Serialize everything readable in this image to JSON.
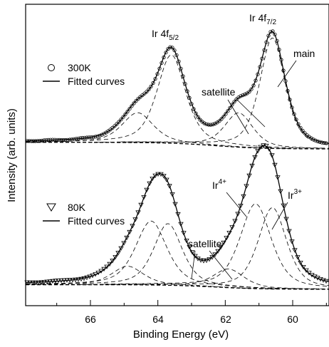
{
  "chart_data": {
    "type": "scatter",
    "xlabel": "Binding Energy (eV)",
    "ylabel": "Intensity (arb. units)",
    "xlim": [
      68,
      59
    ],
    "x_reversed": true,
    "x_ticks": [
      66,
      64,
      62,
      60
    ],
    "y_ticks_shown": false,
    "grid": false,
    "panels": [
      {
        "panel": "top",
        "legend": {
          "position": "upper-left",
          "markers": [
            "300K",
            "Fitted curves"
          ]
        },
        "peak_labels": [
          "Ir 4f5/2",
          "Ir 4f7/2"
        ],
        "annotations": [
          "main",
          "satellite"
        ],
        "peaks": [
          {
            "label": "Ir 4f5/2 main",
            "center": 63.6,
            "height": 0.8,
            "width": 0.5
          },
          {
            "label": "Ir 4f5/2 satellite",
            "center": 64.6,
            "height": 0.27,
            "width": 0.55
          },
          {
            "label": "Ir 4f7/2 main",
            "center": 60.6,
            "height": 1.0,
            "width": 0.45
          },
          {
            "label": "Ir 4f7/2 satellite",
            "center": 61.6,
            "height": 0.31,
            "width": 0.5
          }
        ]
      },
      {
        "panel": "bottom",
        "legend": {
          "position": "upper-left",
          "markers": [
            "80K",
            "Fitted curves"
          ]
        },
        "peak_labels": [
          "Ir4+",
          "Ir3+"
        ],
        "annotations": [
          "satellite"
        ],
        "peaks": [
          {
            "label": "Ir 4f5/2 Ir4+",
            "center": 64.2,
            "height": 0.55,
            "width": 0.55
          },
          {
            "label": "Ir 4f5/2 Ir3+",
            "center": 63.7,
            "height": 0.53,
            "width": 0.5
          },
          {
            "label": "Ir 4f5/2 satellite",
            "center": 64.9,
            "height": 0.16,
            "width": 0.55
          },
          {
            "label": "Ir 4f7/2 Ir4+",
            "center": 61.1,
            "height": 0.73,
            "width": 0.55
          },
          {
            "label": "Ir 4f7/2 Ir3+",
            "center": 60.6,
            "height": 0.7,
            "width": 0.5
          },
          {
            "label": "Ir 4f7/2 satellite",
            "center": 61.9,
            "height": 0.16,
            "width": 0.55
          }
        ]
      }
    ]
  },
  "text": {
    "top_peak_a": "Ir 4f",
    "top_peak_a_sub": "5/2",
    "top_peak_b": "Ir 4f",
    "top_peak_b_sub": "7/2",
    "top_main": "main",
    "top_satellite": "satellite",
    "top_legend_1": "300K",
    "top_legend_2": "Fitted curves",
    "bot_peak_a": "Ir",
    "bot_peak_a_sup": "4+",
    "bot_peak_b": "Ir",
    "bot_peak_b_sup": "3+",
    "bot_satellite": "satellite",
    "bot_legend_1": "80K",
    "bot_legend_2": "Fitted curves",
    "tick_66": "66",
    "tick_64": "64",
    "tick_62": "62",
    "tick_60": "60",
    "xlabel": "Binding Energy (eV)",
    "ylabel": "Intensity (arb. units)"
  }
}
